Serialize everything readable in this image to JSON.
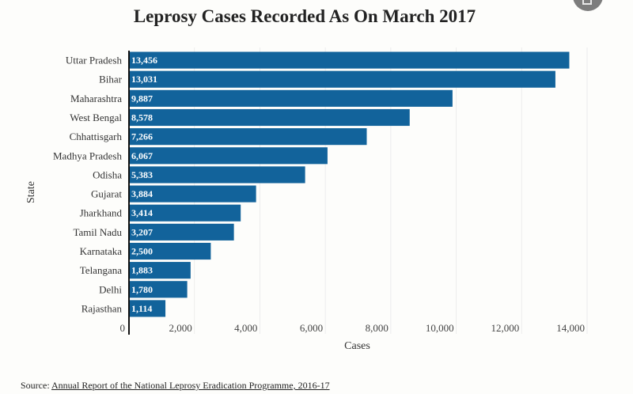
{
  "chart_data": {
    "type": "bar",
    "orientation": "horizontal",
    "title": "Leprosy Cases Recorded As On March 2017",
    "xlabel": "Cases",
    "ylabel": "State",
    "categories": [
      "Uttar Pradesh",
      "Bihar",
      "Maharashtra",
      "West Bengal",
      "Chhattisgarh",
      "Madhya Pradesh",
      "Odisha",
      "Gujarat",
      "Jharkhand",
      "Tamil Nadu",
      "Karnataka",
      "Telangana",
      "Delhi",
      "Rajasthan"
    ],
    "values": [
      13456,
      13031,
      9887,
      8578,
      7266,
      6067,
      5383,
      3884,
      3414,
      3207,
      2500,
      1883,
      1780,
      1114
    ],
    "value_labels": [
      "13,456",
      "13,031",
      "9,887",
      "8,578",
      "7,266",
      "6,067",
      "5,383",
      "3,884",
      "3,414",
      "3,207",
      "2,500",
      "1,883",
      "1,780",
      "1,114"
    ],
    "xlim": [
      0,
      14000
    ],
    "xticks": [
      0,
      2000,
      4000,
      6000,
      8000,
      10000,
      12000,
      14000
    ],
    "xtick_labels": [
      "0",
      "2,000",
      "4,000",
      "6,000",
      "8,000",
      "10,000",
      "12,000",
      "14,000"
    ],
    "grid": true,
    "bar_color": "#12639b",
    "legend": "none"
  },
  "source": {
    "prefix": "Source:",
    "link_text": "Annual Report of the National Leprosy Eradication Programme, 2016-17"
  },
  "corner_button": {
    "icon": "share-icon"
  }
}
